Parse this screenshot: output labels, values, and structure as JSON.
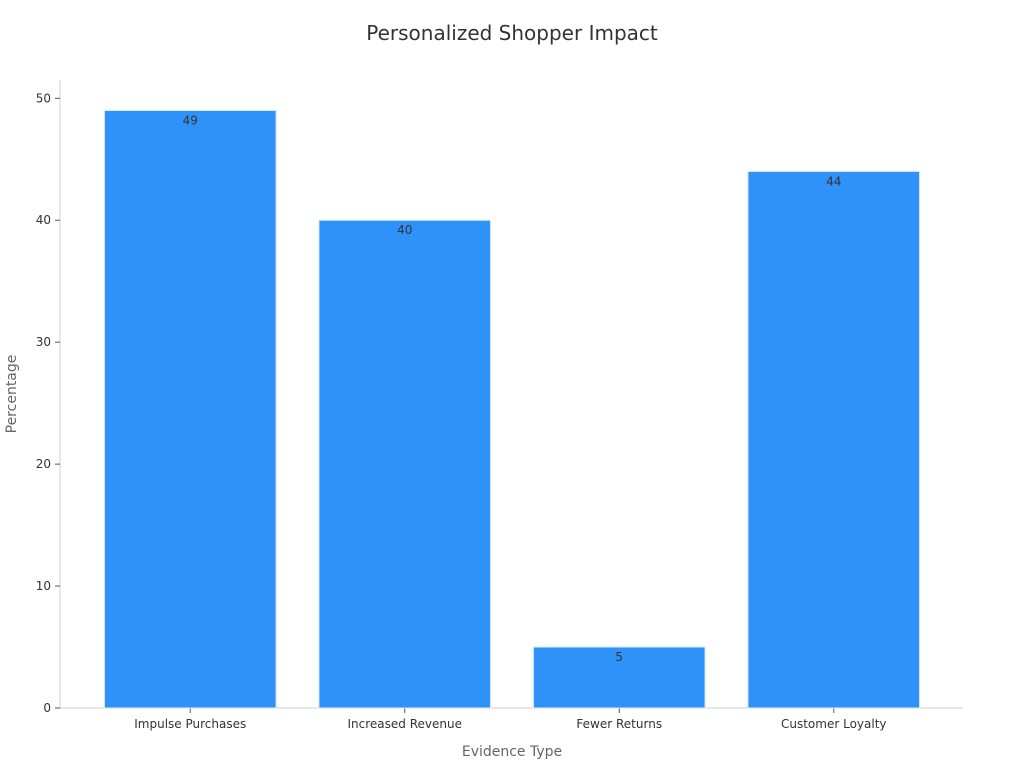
{
  "chart_data": {
    "type": "bar",
    "title": "Personalized Shopper Impact",
    "xlabel": "Evidence Type",
    "ylabel": "Percentage",
    "categories": [
      "Impulse Purchases",
      "Increased Revenue",
      "Fewer Returns",
      "Customer Loyalty"
    ],
    "values": [
      49,
      40,
      5,
      44
    ],
    "data_labels": [
      "49",
      "40",
      "5",
      "44"
    ],
    "yticks": [
      0,
      10,
      20,
      30,
      40,
      50
    ],
    "ylim": [
      0,
      51.5
    ],
    "grid": false,
    "legend": "none",
    "colors": {
      "bar": "#2f92f8",
      "bar_edge": "#d9e9fb",
      "axis": "#cfcfcf",
      "text": "#333333",
      "label": "#666666"
    }
  }
}
